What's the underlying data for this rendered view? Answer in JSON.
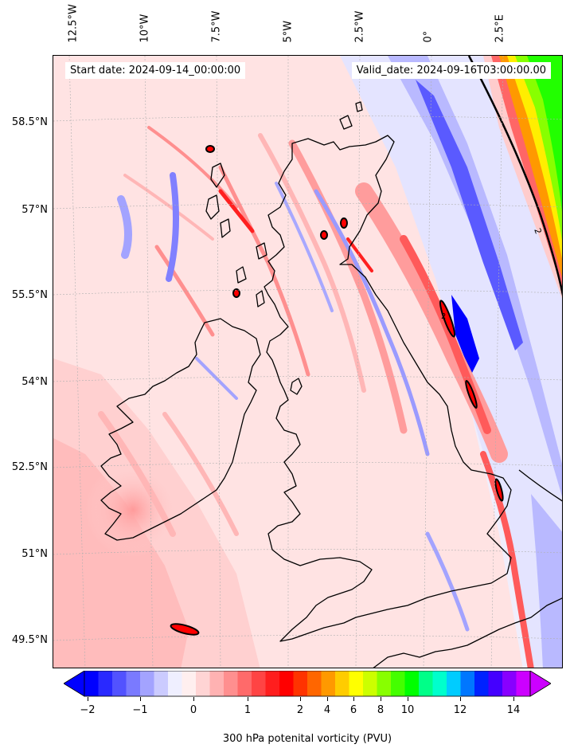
{
  "map": {
    "start_date": "Start date: 2024-09-14_00:00:00",
    "valid_date": "Valid_date: 2024-09-16T03:00:00.00",
    "lon_labels": [
      "12.5°W",
      "10°W",
      "7.5°W",
      "5°W",
      "2.5°W",
      "0°",
      "2.5°E"
    ],
    "lat_labels": [
      "58.5°N",
      "57°N",
      "55.5°N",
      "54°N",
      "52.5°N",
      "51°N",
      "49.5°N"
    ],
    "contour_label": "2",
    "region": "British Isles",
    "extent": {
      "lon_min": -13.5,
      "lon_max": 3.8,
      "lat_min": 49.0,
      "lat_max": 59.8
    }
  },
  "colorbar": {
    "label": "300 hPa potenital vorticity (PVU)",
    "ticks": [
      "−2",
      "−1",
      "0",
      "1",
      "2",
      "4",
      "6",
      "8",
      "10",
      "12",
      "14"
    ],
    "colors": [
      "#0000ff",
      "#2929ff",
      "#5252ff",
      "#7a7aff",
      "#a3a3ff",
      "#cbcbff",
      "#efefff",
      "#ffefef",
      "#ffd4d4",
      "#ffb2b2",
      "#ff8f8f",
      "#ff6a6a",
      "#ff4444",
      "#ff1e1e",
      "#ff0000",
      "#ff3300",
      "#ff6600",
      "#ff9900",
      "#ffcc00",
      "#ffff00",
      "#ccff00",
      "#88ff00",
      "#44ff00",
      "#00ff00",
      "#00ff88",
      "#00ffcc",
      "#00ccff",
      "#0077ff",
      "#0022ff",
      "#4400ff",
      "#8800ff",
      "#cc00ff"
    ],
    "under_color": "#0000ff",
    "over_color": "#cc00ff"
  }
}
